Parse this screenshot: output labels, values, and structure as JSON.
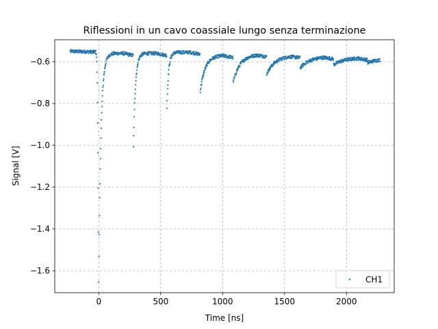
{
  "chart_data": {
    "type": "scatter",
    "title": "Riflessioni in un cavo coassiale lungo senza terminazione",
    "xlabel": "Time [ns]",
    "ylabel": "Signal [V]",
    "xlim": [
      -355,
      2385
    ],
    "ylim": [
      -1.705,
      -0.495
    ],
    "xticks": [
      0,
      500,
      1000,
      1500,
      2000
    ],
    "yticks": [
      -1.6,
      -1.4,
      -1.2,
      -1.0,
      -0.8,
      -0.6
    ],
    "ytick_labels": [
      "−1.6",
      "−1.4",
      "−1.2",
      "−1.0",
      "−0.8",
      "−0.6"
    ],
    "grid": true,
    "legend_position": "lower-right",
    "series": [
      {
        "name": "CH1",
        "color": "#1f77b4",
        "marker": "point",
        "x_start": -230,
        "x_end": 2270,
        "baseline_start": -0.55,
        "baseline_end": -0.59,
        "reflections": [
          {
            "t": 0,
            "depth": -1.65,
            "tau": 18,
            "recover_to": -0.56
          },
          {
            "t": 280,
            "depth": -1.01,
            "tau": 16,
            "recover_to": -0.56
          },
          {
            "t": 550,
            "depth": -0.82,
            "tau": 14,
            "recover_to": -0.555
          },
          {
            "t": 820,
            "depth": -0.74,
            "tau": 40,
            "recover_to": -0.57
          },
          {
            "t": 1085,
            "depth": -0.7,
            "tau": 55,
            "recover_to": -0.565
          },
          {
            "t": 1355,
            "depth": -0.66,
            "tau": 70,
            "recover_to": -0.57
          },
          {
            "t": 1625,
            "depth": -0.63,
            "tau": 80,
            "recover_to": -0.575
          },
          {
            "t": 1895,
            "depth": -0.615,
            "tau": 90,
            "recover_to": -0.58
          },
          {
            "t": 2170,
            "depth": -0.605,
            "tau": 90,
            "recover_to": -0.585
          }
        ]
      }
    ]
  }
}
